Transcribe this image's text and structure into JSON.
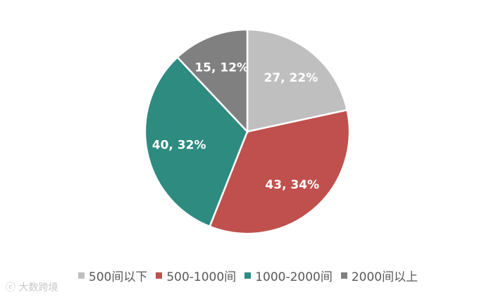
{
  "chart_data": {
    "type": "pie",
    "categories": [
      "500间以下",
      "500-1000间",
      "1000-2000间",
      "2000间以上"
    ],
    "values": [
      27,
      43,
      40,
      15
    ],
    "data_labels": [
      "27, 22%",
      "43, 34%",
      "40, 32%",
      "15, 12%"
    ],
    "colors": [
      "#bfbfbf",
      "#c0504d",
      "#2e8b80",
      "#808080"
    ],
    "legend_position": "bottom",
    "start_angle": "12 o'clock, clockwise"
  },
  "watermark": {
    "icon": "logo-icon",
    "text": "大数跨境"
  }
}
